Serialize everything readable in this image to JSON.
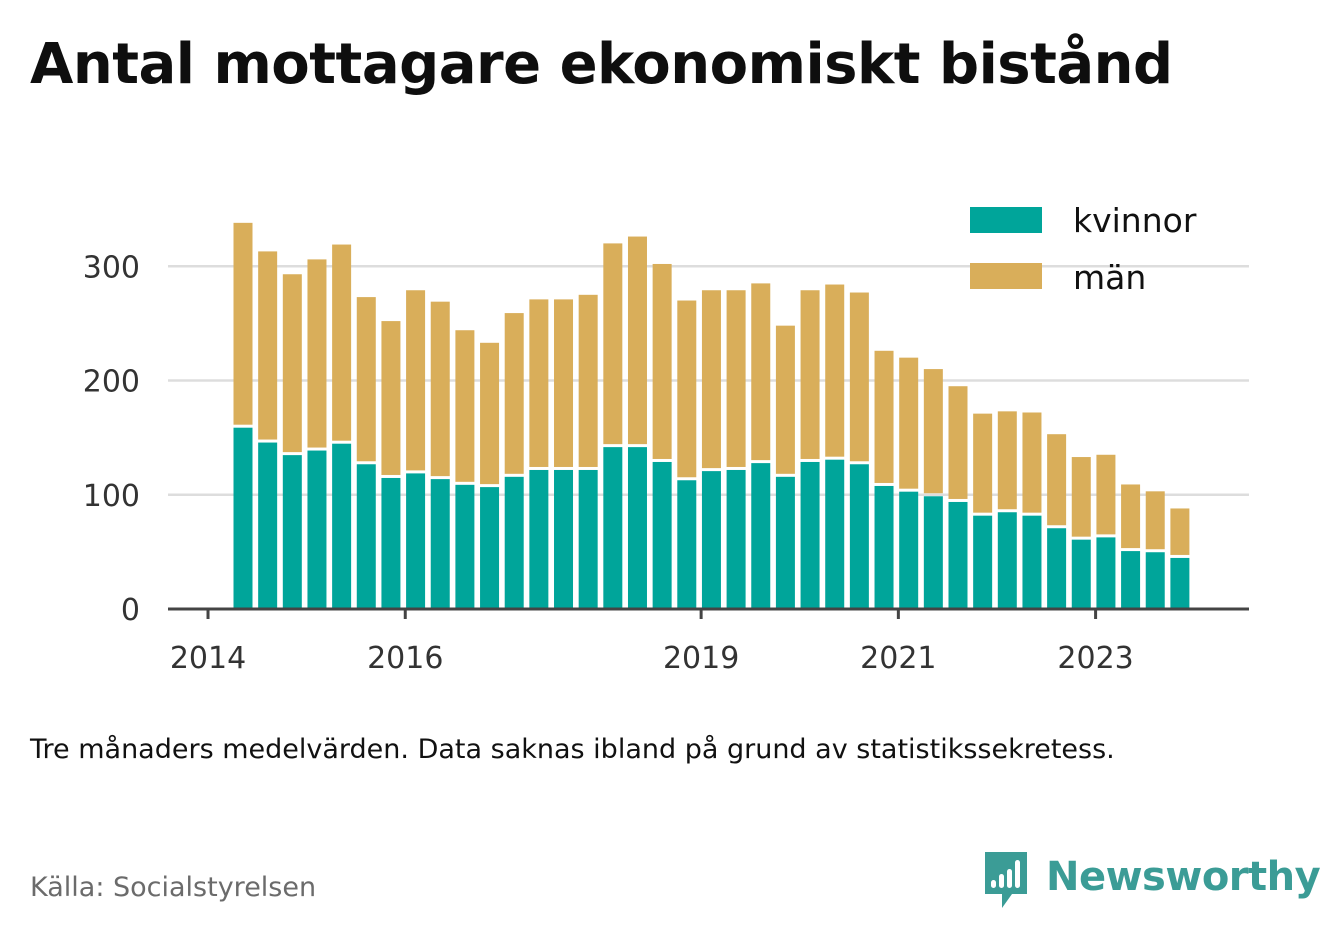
{
  "header": {
    "title": "Antal mottagare ekonomiskt bistånd"
  },
  "footer": {
    "note": "Tre månaders medelvärden. Data saknas ibland på grund av statistikssekretess.",
    "source": "Källa: Socialstyrelsen",
    "brand": "Newsworthy",
    "brand_color": "#3b9c96",
    "brand_icon": "bar-chart-speech-bubble-icon"
  },
  "chart_data": {
    "type": "bar",
    "stacked": true,
    "title": "Antal mottagare ekonomiskt bistånd",
    "xlabel": "",
    "ylabel": "",
    "ylim": [
      0,
      340
    ],
    "yticks": [
      0,
      100,
      200,
      300
    ],
    "xtick_labels": [
      "2014",
      "2016",
      "2019",
      "2021",
      "2023"
    ],
    "grid": true,
    "legend_position": "top-right",
    "colors": {
      "kvinnor": "#00a59a",
      "män": "#d9ae5a",
      "grid": "#dddddd",
      "axis": "#444444"
    },
    "categories": [
      "2014Q2",
      "2014Q3",
      "2014Q4",
      "2015Q1",
      "2015Q2",
      "2015Q3",
      "2015Q4",
      "2016Q1",
      "2016Q2",
      "2016Q3",
      "2016Q4",
      "2017Q1",
      "2017Q2",
      "2017Q3",
      "2017Q4",
      "2018Q1",
      "2018Q2",
      "2018Q3",
      "2018Q4",
      "2019Q1",
      "2019Q2",
      "2019Q3",
      "2019Q4",
      "2020Q1",
      "2020Q2",
      "2020Q3",
      "2020Q4",
      "2021Q1",
      "2021Q2",
      "2021Q3",
      "2021Q4",
      "2022Q1",
      "2022Q2",
      "2022Q3",
      "2022Q4",
      "2023Q1",
      "2023Q2",
      "2023Q3",
      "2023Q4"
    ],
    "series": [
      {
        "name": "kvinnor",
        "values": [
          160,
          147,
          136,
          140,
          146,
          128,
          116,
          120,
          115,
          110,
          108,
          117,
          123,
          123,
          123,
          143,
          143,
          130,
          114,
          122,
          123,
          129,
          117,
          130,
          132,
          128,
          109,
          104,
          100,
          95,
          83,
          86,
          83,
          72,
          62,
          64,
          52,
          51,
          46
        ]
      },
      {
        "name": "män",
        "values": [
          178,
          166,
          157,
          166,
          173,
          145,
          136,
          159,
          154,
          134,
          125,
          142,
          148,
          148,
          152,
          177,
          183,
          172,
          156,
          157,
          156,
          156,
          131,
          149,
          152,
          149,
          117,
          116,
          110,
          100,
          88,
          87,
          89,
          81,
          71,
          71,
          57,
          52,
          42
        ]
      }
    ]
  }
}
